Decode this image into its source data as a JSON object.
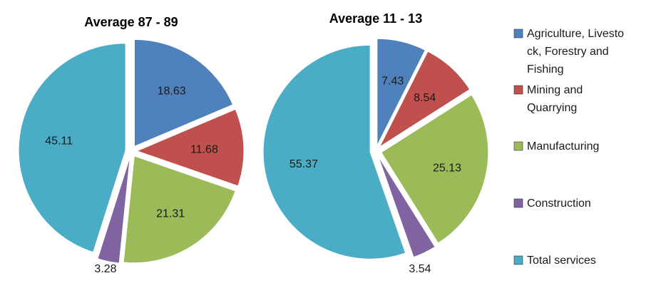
{
  "chart_data": {
    "type": "pie",
    "colors": {
      "agriculture": "#4f81bd",
      "mining": "#c0504d",
      "manufacturing": "#9bbb59",
      "construction": "#8064a2",
      "services": "#4bacc6"
    },
    "legend": [
      {
        "key": "agriculture",
        "lines": [
          "Agriculture, Livesto",
          "ck, Forestry and",
          "Fishing"
        ]
      },
      {
        "key": "mining",
        "lines": [
          "Mining and",
          "Quarrying"
        ]
      },
      {
        "key": "manufacturing",
        "lines": [
          "Manufacturing"
        ]
      },
      {
        "key": "construction",
        "lines": [
          "Construction"
        ]
      },
      {
        "key": "services",
        "lines": [
          "Total services"
        ]
      }
    ],
    "pies": [
      {
        "title": "Average 87 - 89",
        "slices": [
          {
            "key": "agriculture",
            "value": 18.63,
            "label": "18.63"
          },
          {
            "key": "mining",
            "value": 11.68,
            "label": "11.68"
          },
          {
            "key": "manufacturing",
            "value": 21.31,
            "label": "21.31"
          },
          {
            "key": "construction",
            "value": 3.28,
            "label": "3.28"
          },
          {
            "key": "services",
            "value": 45.11,
            "label": "45.11"
          }
        ]
      },
      {
        "title": "Average 11 - 13",
        "slices": [
          {
            "key": "agriculture",
            "value": 7.43,
            "label": "7.43"
          },
          {
            "key": "mining",
            "value": 8.54,
            "label": "8.54"
          },
          {
            "key": "manufacturing",
            "value": 25.13,
            "label": "25.13"
          },
          {
            "key": "construction",
            "value": 3.54,
            "label": "3.54"
          },
          {
            "key": "services",
            "value": 55.37,
            "label": "55.37"
          }
        ]
      }
    ]
  }
}
